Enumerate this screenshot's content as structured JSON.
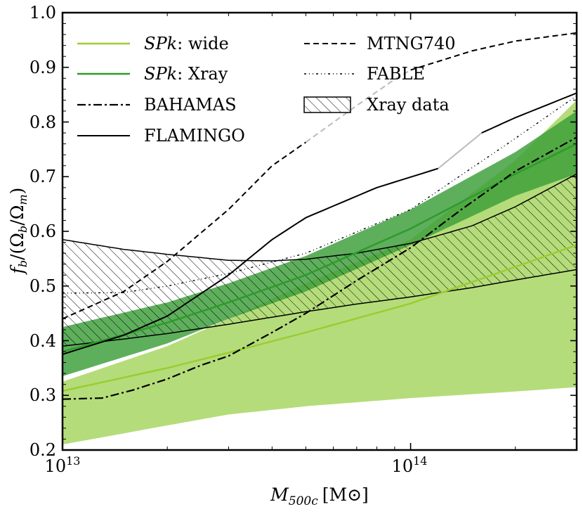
{
  "chart_data": {
    "type": "line",
    "xscale": "log",
    "xlim": [
      10000000000000.0,
      300000000000000.0
    ],
    "ylim": [
      0.2,
      1.0
    ],
    "xlabel": {
      "base": "M",
      "sub": "500c",
      "units": "[M⊙]"
    },
    "ylabel": {
      "f": "f",
      "fsub": "b",
      "slash": "/(",
      "omega_b": "Ω",
      "omega_b_sub": "b",
      "slash2": "/",
      "omega_m": "Ω",
      "omega_m_sub": "m",
      "close": ")"
    },
    "xticks": [
      {
        "value": 10000000000000.0,
        "base": "10",
        "exp": "13"
      },
      {
        "value": 100000000000000.0,
        "base": "10",
        "exp": "14"
      }
    ],
    "yticks": [
      "0.2",
      "0.3",
      "0.4",
      "0.5",
      "0.6",
      "0.7",
      "0.8",
      "0.9",
      "1.0"
    ],
    "grid": false,
    "legend_position": "top-left",
    "colors": {
      "wide_line": "#9acd32",
      "wide_band": "#b5dc7a",
      "xray_line": "#2e9b2a",
      "xray_band": "#3a9e38",
      "black": "#000000",
      "gray": "#bbbbbb"
    },
    "bands": [
      {
        "name": "SPk: wide band",
        "color_key": "wide_band",
        "opacity": 1.0,
        "x": [
          10000000000000.0,
          20000000000000.0,
          30000000000000.0,
          50000000000000.0,
          100000000000000.0,
          200000000000000.0,
          300000000000000.0
        ],
        "upper": [
          0.325,
          0.39,
          0.44,
          0.505,
          0.585,
          0.73,
          0.84
        ],
        "lower": [
          0.21,
          0.245,
          0.265,
          0.28,
          0.295,
          0.307,
          0.315
        ]
      },
      {
        "name": "SPk: Xray band",
        "color_key": "xray_band",
        "opacity": 0.82,
        "x": [
          10000000000000.0,
          20000000000000.0,
          30000000000000.0,
          50000000000000.0,
          100000000000000.0,
          200000000000000.0,
          300000000000000.0
        ],
        "upper": [
          0.425,
          0.47,
          0.505,
          0.555,
          0.64,
          0.745,
          0.82
        ],
        "lower": [
          0.335,
          0.395,
          0.44,
          0.49,
          0.575,
          0.665,
          0.705
        ]
      },
      {
        "name": "Xray data",
        "hatch": true,
        "x": [
          10000000000000.0,
          15000000000000.0,
          20000000000000.0,
          30000000000000.0,
          40000000000000.0,
          50000000000000.0,
          70000000000000.0,
          100000000000000.0,
          150000000000000.0,
          200000000000000.0,
          300000000000000.0
        ],
        "upper": [
          0.585,
          0.567,
          0.558,
          0.547,
          0.546,
          0.549,
          0.56,
          0.578,
          0.61,
          0.645,
          0.705
        ],
        "lower": [
          0.39,
          0.403,
          0.413,
          0.43,
          0.443,
          0.453,
          0.467,
          0.48,
          0.497,
          0.511,
          0.53
        ]
      }
    ],
    "series": [
      {
        "name": "SPk: wide",
        "color_key": "wide_line",
        "width": 2.5,
        "dash": "",
        "x": [
          10000000000000.0,
          20000000000000.0,
          30000000000000.0,
          50000000000000.0,
          100000000000000.0,
          200000000000000.0,
          300000000000000.0
        ],
        "y": [
          0.308,
          0.35,
          0.378,
          0.415,
          0.468,
          0.535,
          0.575
        ]
      },
      {
        "name": "SPk: Xray",
        "color_key": "xray_line",
        "width": 2.5,
        "dash": "",
        "x": [
          10000000000000.0,
          20000000000000.0,
          30000000000000.0,
          50000000000000.0,
          100000000000000.0,
          200000000000000.0,
          300000000000000.0
        ],
        "y": [
          0.38,
          0.433,
          0.47,
          0.52,
          0.605,
          0.705,
          0.76
        ]
      },
      {
        "name": "BAHAMAS",
        "color_key": "black",
        "width": 2.2,
        "dash": "12 4 3 4",
        "x": [
          10000000000000.0,
          13000000000000.0,
          16000000000000.0,
          20000000000000.0,
          25000000000000.0,
          30000000000000.0,
          40000000000000.0,
          50000000000000.0,
          70000000000000.0,
          100000000000000.0,
          140000000000000.0,
          200000000000000.0,
          300000000000000.0
        ],
        "y": [
          0.293,
          0.295,
          0.31,
          0.33,
          0.355,
          0.372,
          0.415,
          0.45,
          0.51,
          0.57,
          0.64,
          0.71,
          0.772
        ]
      },
      {
        "name": "FLAMINGO",
        "color_key": "black",
        "width": 2.0,
        "dash": "",
        "x": [
          10000000000000.0,
          15000000000000.0,
          20000000000000.0,
          30000000000000.0,
          40000000000000.0,
          50000000000000.0,
          80000000000000.0,
          120000000000000.0
        ],
        "y": [
          0.375,
          0.41,
          0.445,
          0.52,
          0.585,
          0.625,
          0.68,
          0.715
        ]
      },
      {
        "name": "FLAMINGO (gray segment)",
        "color_key": "gray",
        "width": 2.0,
        "dash": "",
        "x": [
          120000000000000.0,
          160000000000000.0
        ],
        "y": [
          0.715,
          0.78
        ]
      },
      {
        "name": "FLAMINGO (high mass)",
        "color_key": "black",
        "width": 2.0,
        "dash": "",
        "x": [
          160000000000000.0,
          200000000000000.0,
          300000000000000.0
        ],
        "y": [
          0.78,
          0.808,
          0.853
        ]
      },
      {
        "name": "MTNG740",
        "color_key": "black",
        "width": 2.0,
        "dash": "8 5",
        "x": [
          10000000000000.0,
          15000000000000.0,
          20000000000000.0,
          30000000000000.0,
          40000000000000.0,
          50000000000000.0
        ],
        "y": [
          0.44,
          0.49,
          0.545,
          0.64,
          0.72,
          0.763
        ]
      },
      {
        "name": "MTNG740 (gray segment)",
        "color_key": "gray",
        "width": 2.0,
        "dash": "8 5",
        "x": [
          50000000000000.0,
          70000000000000.0,
          90000000000000.0,
          100000000000000.0
        ],
        "y": [
          0.763,
          0.83,
          0.878,
          0.895
        ]
      },
      {
        "name": "MTNG740 (high mass)",
        "color_key": "black",
        "width": 2.0,
        "dash": "8 5",
        "x": [
          100000000000000.0,
          150000000000000.0,
          200000000000000.0,
          300000000000000.0
        ],
        "y": [
          0.895,
          0.93,
          0.948,
          0.963
        ]
      },
      {
        "name": "FABLE",
        "color_key": "black",
        "width": 1.4,
        "dash": "3 4 1 4 1 4",
        "x": [
          10000000000000.0,
          15000000000000.0,
          20000000000000.0,
          30000000000000.0,
          50000000000000.0,
          100000000000000.0,
          200000000000000.0,
          300000000000000.0
        ],
        "y": [
          0.487,
          0.488,
          0.5,
          0.523,
          0.56,
          0.64,
          0.77,
          0.848
        ]
      }
    ],
    "legend": [
      {
        "kind": "line",
        "color_key": "wide_line",
        "width": 2.5,
        "dash": "",
        "math": "SPk",
        "suffix": ": wide"
      },
      {
        "kind": "line",
        "color_key": "xray_line",
        "width": 2.5,
        "dash": "",
        "math": "SPk",
        "suffix": ": Xray"
      },
      {
        "kind": "line",
        "color_key": "black",
        "width": 2.2,
        "dash": "12 4 3 4",
        "label": "BAHAMAS"
      },
      {
        "kind": "line",
        "color_key": "black",
        "width": 2.0,
        "dash": "",
        "label": "FLAMINGO"
      },
      {
        "kind": "line",
        "color_key": "black",
        "width": 2.0,
        "dash": "8 5",
        "label": "MTNG740"
      },
      {
        "kind": "line",
        "color_key": "black",
        "width": 1.4,
        "dash": "3 4 1 4 1 4",
        "label": "FABLE"
      },
      {
        "kind": "hatch",
        "label": "Xray data"
      }
    ]
  }
}
